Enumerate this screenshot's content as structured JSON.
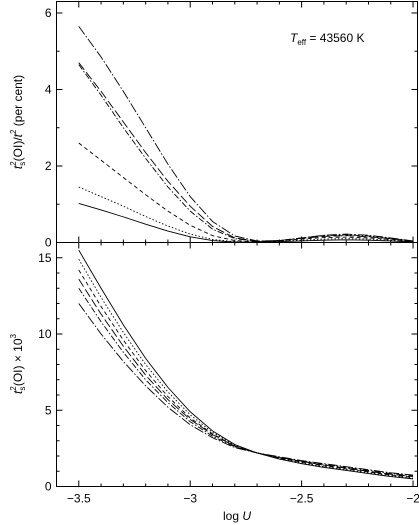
{
  "chart_data": [
    {
      "type": "line",
      "panel": "top",
      "ylabel_parts": {
        "t": "t",
        "s": "s",
        "sup2": "2",
        "rest": "(OI)/",
        "t2": "t",
        "sup2b": "2",
        "unit": " (per cent)"
      },
      "annotation": {
        "T": "T",
        "eff": "eff",
        "eq": " = 43560 K"
      },
      "xlim": [
        -3.6,
        -1.98
      ],
      "ylim": [
        0,
        6.3
      ],
      "yticks": [
        0,
        2,
        4,
        6
      ],
      "ytick_labels": [
        "0",
        "2",
        "4",
        "6"
      ],
      "xticks": [
        -3.5,
        -3,
        -2.5,
        -2
      ],
      "grid": false,
      "series": [
        {
          "style": "solid",
          "x": [
            -3.5,
            -3.4,
            -3.3,
            -3.2,
            -3.1,
            -3.0,
            -2.9,
            -2.8,
            -2.7,
            -2.6,
            -2.5,
            -2.4,
            -2.3,
            -2.2,
            -2.1,
            -2.0
          ],
          "y": [
            1.02,
            0.85,
            0.67,
            0.48,
            0.3,
            0.15,
            0.05,
            0.01,
            0.01,
            0.02,
            0.04,
            0.06,
            0.07,
            0.06,
            0.04,
            0.01
          ]
        },
        {
          "style": "dotted",
          "x": [
            -3.5,
            -3.4,
            -3.3,
            -3.2,
            -3.1,
            -3.0,
            -2.9,
            -2.8,
            -2.7,
            -2.6,
            -2.5,
            -2.4,
            -2.3,
            -2.2,
            -2.1,
            -2.0
          ],
          "y": [
            1.45,
            1.2,
            0.95,
            0.68,
            0.43,
            0.22,
            0.08,
            0.02,
            0.01,
            0.03,
            0.06,
            0.09,
            0.1,
            0.09,
            0.06,
            0.02
          ]
        },
        {
          "style": "dashed",
          "x": [
            -3.5,
            -3.4,
            -3.3,
            -3.2,
            -3.1,
            -3.0,
            -2.9,
            -2.8,
            -2.7,
            -2.6,
            -2.5,
            -2.4,
            -2.3,
            -2.2,
            -2.1,
            -2.0
          ],
          "y": [
            2.6,
            2.15,
            1.7,
            1.25,
            0.82,
            0.45,
            0.18,
            0.05,
            0.02,
            0.04,
            0.09,
            0.13,
            0.14,
            0.12,
            0.08,
            0.02
          ]
        },
        {
          "style": "long-dash",
          "x": [
            -3.5,
            -3.4,
            -3.3,
            -3.2,
            -3.1,
            -3.0,
            -2.9,
            -2.8,
            -2.7,
            -2.6,
            -2.5,
            -2.4,
            -2.3,
            -2.2,
            -2.1,
            -2.0
          ],
          "y": [
            4.7,
            3.95,
            3.15,
            2.35,
            1.6,
            0.95,
            0.42,
            0.12,
            0.03,
            0.05,
            0.11,
            0.16,
            0.18,
            0.15,
            0.1,
            0.03
          ]
        },
        {
          "style": "dash-dot",
          "x": [
            -3.5,
            -3.4,
            -3.3,
            -3.2,
            -3.1,
            -3.0,
            -2.9,
            -2.8,
            -2.7,
            -2.6,
            -2.5,
            -2.4,
            -2.3,
            -2.2,
            -2.1,
            -2.0
          ],
          "y": [
            4.65,
            3.85,
            3.0,
            2.2,
            1.45,
            0.82,
            0.35,
            0.1,
            0.03,
            0.05,
            0.12,
            0.18,
            0.2,
            0.17,
            0.11,
            0.03
          ]
        },
        {
          "style": "dash-dot-long",
          "x": [
            -3.5,
            -3.4,
            -3.3,
            -3.2,
            -3.1,
            -3.0,
            -2.9,
            -2.8,
            -2.7,
            -2.6,
            -2.5,
            -2.4,
            -2.3,
            -2.2,
            -2.1,
            -2.0
          ],
          "y": [
            5.65,
            4.85,
            3.95,
            3.0,
            2.05,
            1.2,
            0.55,
            0.17,
            0.04,
            0.05,
            0.12,
            0.19,
            0.22,
            0.19,
            0.12,
            0.04
          ]
        }
      ]
    },
    {
      "type": "line",
      "panel": "bottom",
      "ylabel_parts": {
        "t": "t",
        "s": "s",
        "sup2": "2",
        "rest": "(OI) × 10",
        "sup3": "3"
      },
      "xlabel": {
        "log": "log ",
        "U": "U"
      },
      "xlim": [
        -3.6,
        -1.98
      ],
      "ylim": [
        0,
        16
      ],
      "yticks": [
        0,
        5,
        10,
        15
      ],
      "ytick_labels": [
        "0",
        "5",
        "10",
        "15"
      ],
      "xticks": [
        -3.5,
        -3,
        -2.5,
        -2
      ],
      "xtick_labels": [
        "−3.5",
        "−3",
        "−2.5",
        "−2"
      ],
      "grid": false,
      "series": [
        {
          "style": "solid",
          "x": [
            -3.5,
            -3.4,
            -3.3,
            -3.2,
            -3.1,
            -3.0,
            -2.9,
            -2.8,
            -2.7,
            -2.6,
            -2.5,
            -2.4,
            -2.3,
            -2.2,
            -2.1,
            -2.0
          ],
          "y": [
            15.5,
            13.0,
            10.6,
            8.4,
            6.5,
            4.9,
            3.65,
            2.75,
            2.2,
            1.8,
            1.5,
            1.25,
            1.05,
            0.85,
            0.65,
            0.5
          ]
        },
        {
          "style": "dotted",
          "x": [
            -3.5,
            -3.4,
            -3.3,
            -3.2,
            -3.1,
            -3.0,
            -2.9,
            -2.8,
            -2.7,
            -2.6,
            -2.5,
            -2.4,
            -2.3,
            -2.2,
            -2.1,
            -2.0
          ],
          "y": [
            14.9,
            12.4,
            10.1,
            8.0,
            6.2,
            4.7,
            3.55,
            2.7,
            2.2,
            1.85,
            1.55,
            1.3,
            1.1,
            0.9,
            0.7,
            0.55
          ]
        },
        {
          "style": "dashed",
          "x": [
            -3.5,
            -3.4,
            -3.3,
            -3.2,
            -3.1,
            -3.0,
            -2.9,
            -2.8,
            -2.7,
            -2.6,
            -2.5,
            -2.4,
            -2.3,
            -2.2,
            -2.1,
            -2.0
          ],
          "y": [
            14.2,
            11.8,
            9.6,
            7.6,
            5.9,
            4.5,
            3.45,
            2.65,
            2.2,
            1.85,
            1.6,
            1.35,
            1.15,
            0.95,
            0.75,
            0.6
          ]
        },
        {
          "style": "long-dash",
          "x": [
            -3.5,
            -3.4,
            -3.3,
            -3.2,
            -3.1,
            -3.0,
            -2.9,
            -2.8,
            -2.7,
            -2.6,
            -2.5,
            -2.4,
            -2.3,
            -2.2,
            -2.1,
            -2.0
          ],
          "y": [
            13.6,
            11.3,
            9.2,
            7.3,
            5.7,
            4.4,
            3.4,
            2.65,
            2.2,
            1.9,
            1.65,
            1.4,
            1.2,
            1.0,
            0.8,
            0.65
          ]
        },
        {
          "style": "dash-dot",
          "x": [
            -3.5,
            -3.4,
            -3.3,
            -3.2,
            -3.1,
            -3.0,
            -2.9,
            -2.8,
            -2.7,
            -2.6,
            -2.5,
            -2.4,
            -2.3,
            -2.2,
            -2.1,
            -2.0
          ],
          "y": [
            13.0,
            10.8,
            8.8,
            7.0,
            5.5,
            4.25,
            3.3,
            2.6,
            2.2,
            1.9,
            1.65,
            1.45,
            1.25,
            1.05,
            0.85,
            0.7
          ]
        },
        {
          "style": "dash-dot-long",
          "x": [
            -3.5,
            -3.4,
            -3.3,
            -3.2,
            -3.1,
            -3.0,
            -2.9,
            -2.8,
            -2.7,
            -2.6,
            -2.5,
            -2.4,
            -2.3,
            -2.2,
            -2.1,
            -2.0
          ],
          "y": [
            12.0,
            10.0,
            8.2,
            6.6,
            5.2,
            4.05,
            3.2,
            2.55,
            2.2,
            1.95,
            1.7,
            1.5,
            1.3,
            1.1,
            0.9,
            0.75
          ]
        }
      ]
    }
  ]
}
